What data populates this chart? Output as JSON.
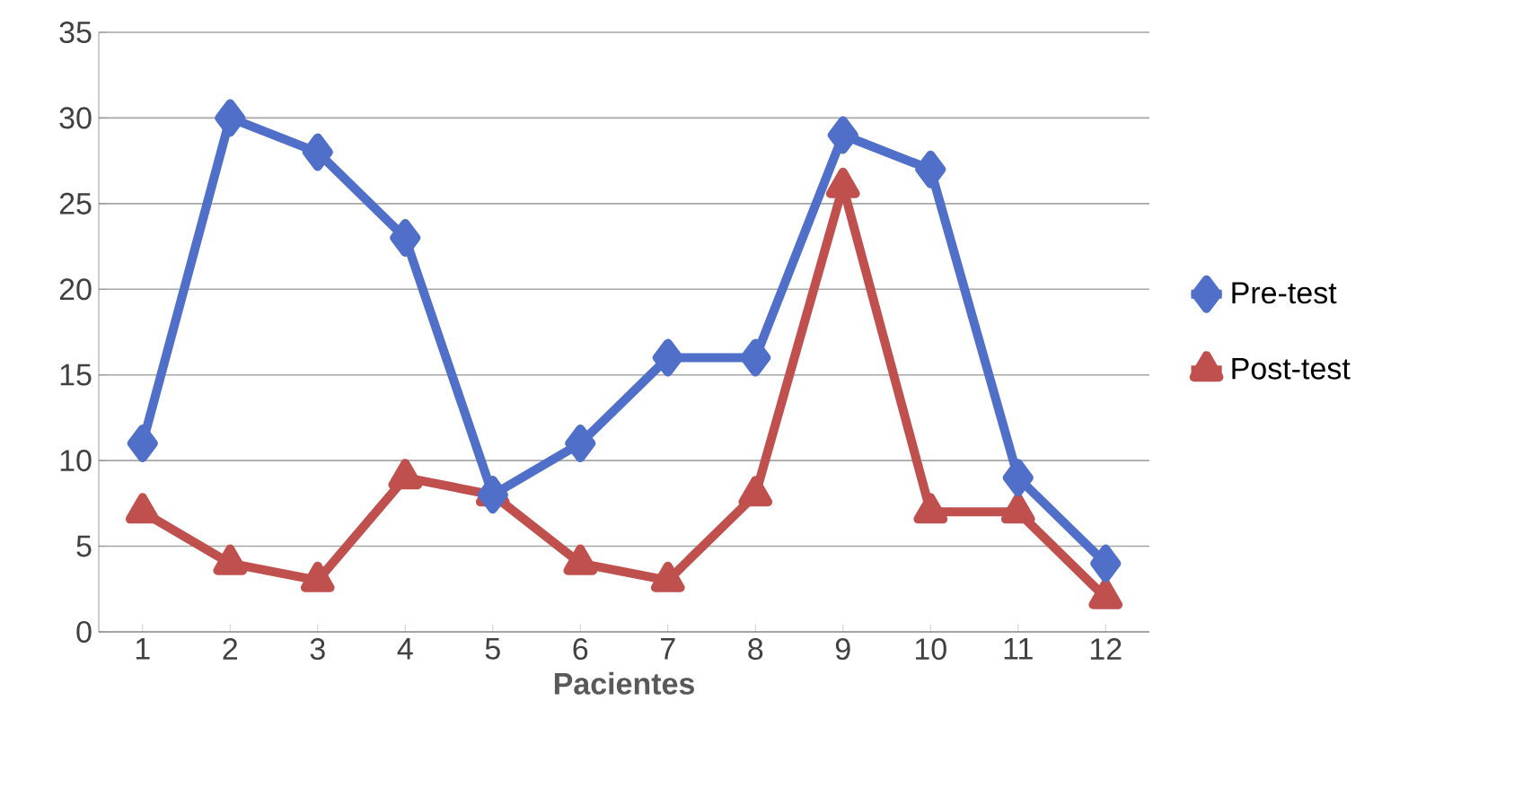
{
  "chart_data": {
    "type": "line",
    "xlabel": "Pacientes",
    "categories": [
      "1",
      "2",
      "3",
      "4",
      "5",
      "6",
      "7",
      "8",
      "9",
      "10",
      "11",
      "12"
    ],
    "series": [
      {
        "name": "Pre-test",
        "color": "#4f6fc8",
        "marker": "diamond",
        "values": [
          11,
          30,
          28,
          23,
          8,
          11,
          16,
          16,
          29,
          27,
          9,
          4
        ]
      },
      {
        "name": "Post-test",
        "color": "#c0504d",
        "marker": "triangle",
        "values": [
          7,
          4,
          3,
          9,
          8,
          4,
          3,
          8,
          26,
          7,
          7,
          2
        ]
      }
    ],
    "ylim": [
      0,
      35
    ],
    "yticks": [
      0,
      5,
      10,
      15,
      20,
      25,
      30,
      35
    ],
    "grid": "y",
    "legend": "right",
    "line_style": "solid"
  }
}
